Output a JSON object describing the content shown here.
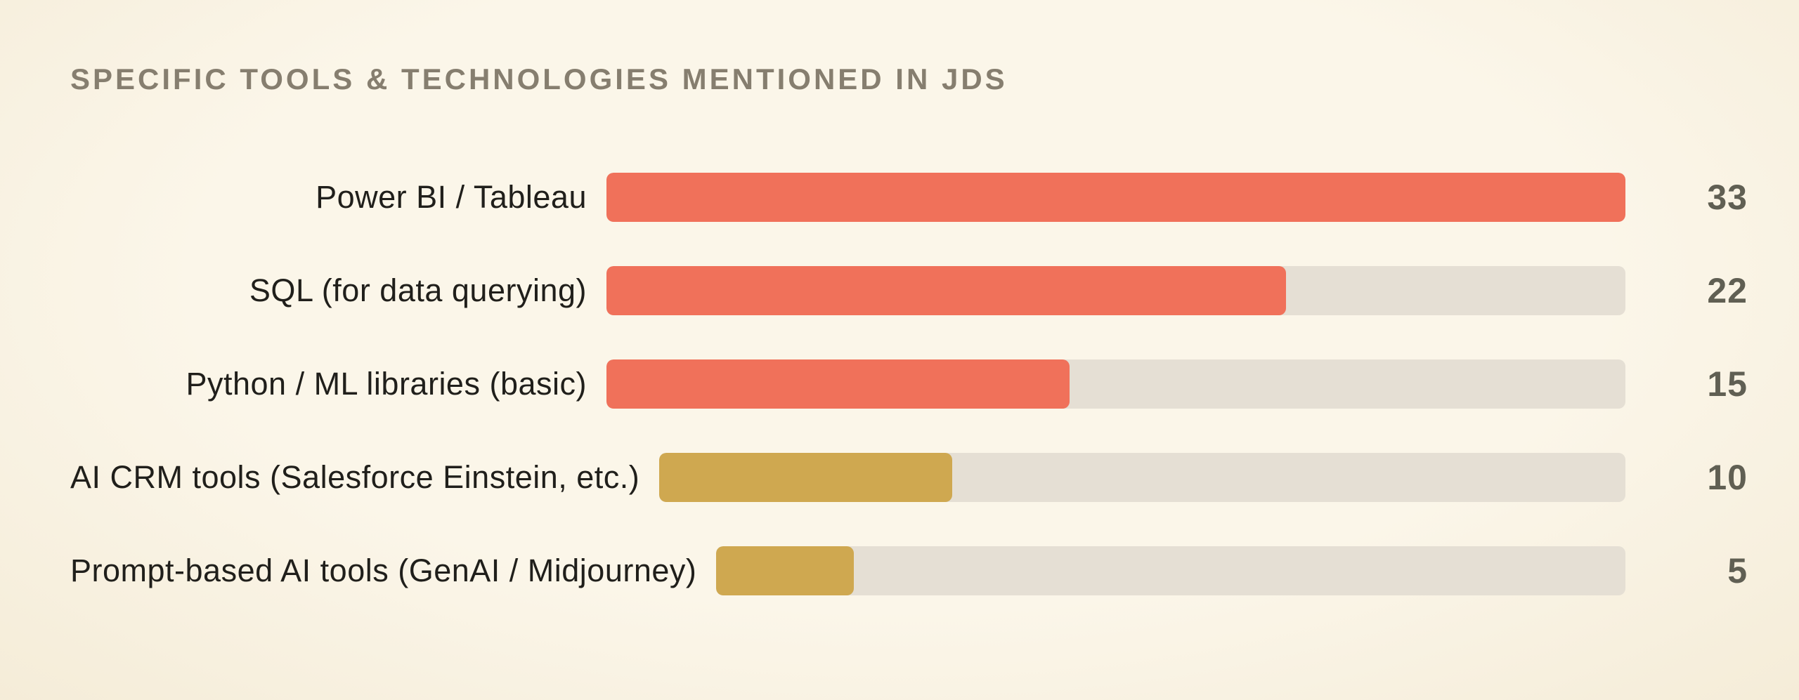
{
  "colors": {
    "background": "#FAF3E2",
    "title": "#867E6F",
    "label": "#201F1B",
    "value": "#605F53",
    "track": "#E5DFD4",
    "bar_orange": "#F0715A",
    "bar_gold": "#CFA850"
  },
  "chart_data": {
    "type": "bar",
    "orientation": "horizontal",
    "title": "SPECIFIC TOOLS & TECHNOLOGIES MENTIONED IN JDS",
    "categories": [
      "Power BI / Tableau",
      "SQL (for data querying)",
      "Python / ML libraries (basic)",
      "AI CRM tools (Salesforce Einstein, etc.)",
      "Prompt-based AI tools (GenAI / Midjourney)"
    ],
    "values": [
      33,
      22,
      15,
      10,
      5
    ],
    "bar_colors": [
      "#F0715A",
      "#F0715A",
      "#F0715A",
      "#CFA850",
      "#CFA850"
    ],
    "xlim": [
      0,
      33
    ],
    "grid": false,
    "value_labels_position": "right",
    "legend": "none"
  }
}
